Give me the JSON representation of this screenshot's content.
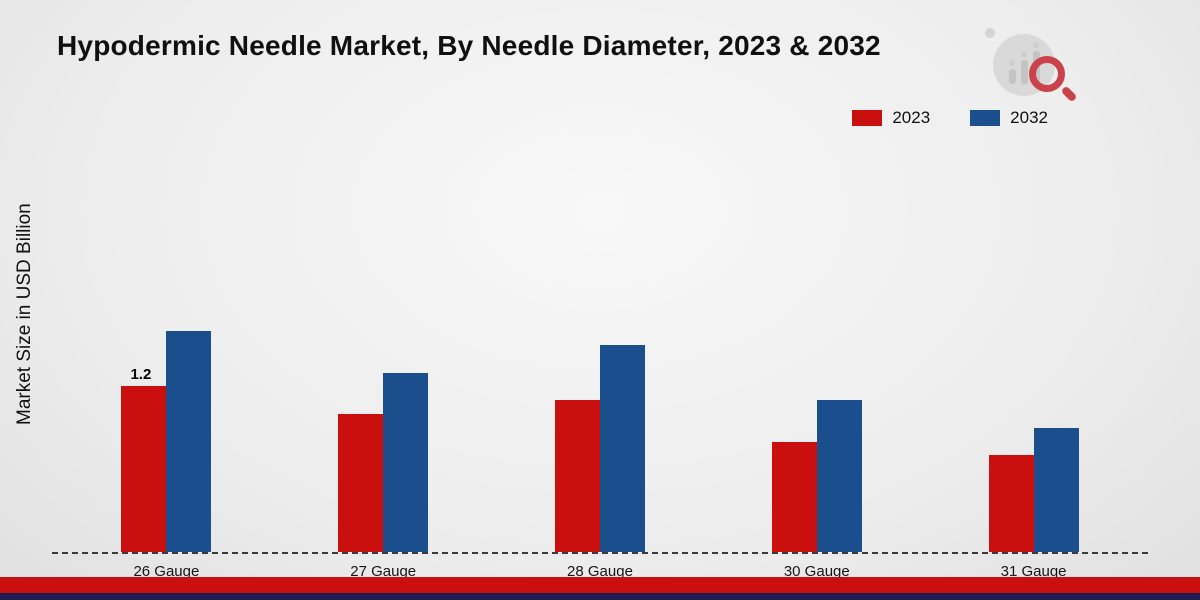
{
  "title": "Hypodermic Needle Market, By Needle Diameter, 2023 & 2032",
  "y_axis_label": "Market Size in USD Billion",
  "legend": [
    {
      "label": "2023",
      "color": "#c9100f"
    },
    {
      "label": "2032",
      "color": "#1a4e8c"
    }
  ],
  "chart_data": {
    "type": "bar",
    "title": "Hypodermic Needle Market, By Needle Diameter, 2023 & 2032",
    "categories": [
      "26 Gauge",
      "27 Gauge",
      "28 Gauge",
      "30 Gauge",
      "31 Gauge"
    ],
    "series": [
      {
        "name": "2023",
        "color": "#c9100f",
        "values": [
          1.2,
          1.0,
          1.1,
          0.8,
          0.7
        ]
      },
      {
        "name": "2032",
        "color": "#1a4e8c",
        "values": [
          1.6,
          1.3,
          1.5,
          1.1,
          0.9
        ]
      }
    ],
    "xlabel": "",
    "ylabel": "Market Size in USD Billion",
    "ylim": [
      0,
      2
    ],
    "grid": false,
    "legend_position": "top-right",
    "annotations": [
      {
        "series": "2023",
        "category": "26 Gauge",
        "text": "1.2"
      }
    ],
    "baseline_style": "dashed"
  },
  "brand": {
    "logo_name": "market-research-logo",
    "footer_bar_color": "#c9100f",
    "footer_line_color": "#1f1c52"
  }
}
